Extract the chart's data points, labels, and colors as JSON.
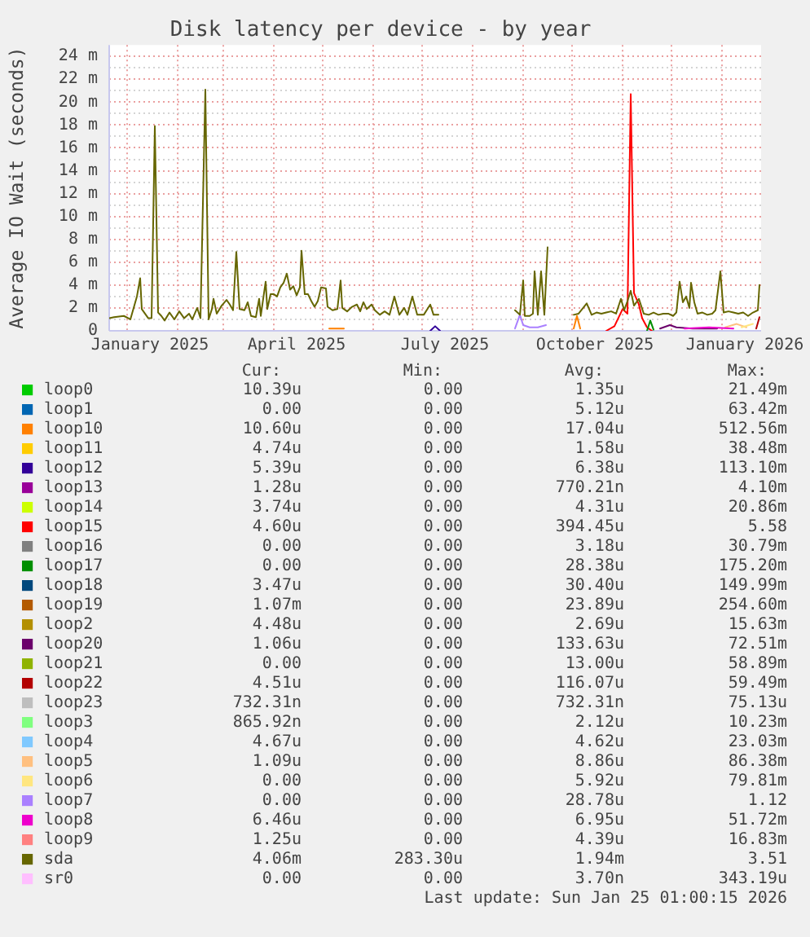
{
  "chart_data": {
    "type": "line",
    "title": "Disk latency per device - by year",
    "ylabel": "Average IO Wait (seconds)",
    "xlim": [
      "2024-12-21",
      "2026-01-25"
    ],
    "xticks": [
      {
        "value": "2025-01-01",
        "label": null
      },
      {
        "value": "2025-01-15",
        "label": "January 2025"
      },
      {
        "value": "2025-02-01",
        "label": null
      },
      {
        "value": "2025-03-01",
        "label": null
      },
      {
        "value": "2025-04-01",
        "label": null
      },
      {
        "value": "2025-04-15",
        "label": "April 2025"
      },
      {
        "value": "2025-05-01",
        "label": null
      },
      {
        "value": "2025-06-01",
        "label": null
      },
      {
        "value": "2025-07-01",
        "label": null
      },
      {
        "value": "2025-07-15",
        "label": "July 2025"
      },
      {
        "value": "2025-08-01",
        "label": null
      },
      {
        "value": "2025-09-01",
        "label": null
      },
      {
        "value": "2025-10-01",
        "label": null
      },
      {
        "value": "2025-10-15",
        "label": "October 2025"
      },
      {
        "value": "2025-11-01",
        "label": null
      },
      {
        "value": "2025-12-01",
        "label": null
      },
      {
        "value": "2026-01-01",
        "label": null
      },
      {
        "value": "2026-01-15",
        "label": "January 2026"
      }
    ],
    "ylim": [
      0,
      25
    ],
    "yticks": [
      0,
      {
        "value": 1,
        "label": null
      },
      {
        "value": 2,
        "label": "2 m"
      },
      {
        "value": 3,
        "label": null
      },
      {
        "value": 4,
        "label": "4 m"
      },
      {
        "value": 5,
        "label": null
      },
      {
        "value": 6,
        "label": "6 m"
      },
      {
        "value": 7,
        "label": null
      },
      {
        "value": 8,
        "label": "8 m"
      },
      {
        "value": 9,
        "label": null
      },
      {
        "value": 10,
        "label": "10 m"
      },
      {
        "value": 11,
        "label": null
      },
      {
        "value": 12,
        "label": "12 m"
      },
      {
        "value": 13,
        "label": null
      },
      {
        "value": 14,
        "label": "14 m"
      },
      {
        "value": 15,
        "label": null
      },
      {
        "value": 16,
        "label": "16 m"
      },
      {
        "value": 17,
        "label": null
      },
      {
        "value": 18,
        "label": "18 m"
      },
      {
        "value": 19,
        "label": null
      },
      {
        "value": 20,
        "label": "20 m"
      },
      {
        "value": 21,
        "label": null
      },
      {
        "value": 22,
        "label": "22 m"
      },
      {
        "value": 23,
        "label": null
      },
      {
        "value": 24,
        "label": "24 m"
      }
    ],
    "grid": true,
    "legend": "bottom",
    "series": [
      {
        "name": "loop0",
        "color": "#00cc00"
      },
      {
        "name": "loop1",
        "color": "#0066b3"
      },
      {
        "name": "loop10",
        "color": "#ff8000",
        "x": [
          "2025-05-05",
          "2025-05-14",
          "2025-07-01",
          "2025-10-02",
          "2025-10-04",
          "2025-10-06"
        ],
        "values": [
          0.2,
          0.2,
          null,
          0.2,
          1.3,
          0.2
        ]
      },
      {
        "name": "loop11",
        "color": "#ffcc00"
      },
      {
        "name": "loop12",
        "color": "#330099",
        "x": [
          "2025-07-06",
          "2025-07-09",
          "2025-07-12"
        ],
        "values": [
          0,
          0.4,
          0
        ]
      },
      {
        "name": "loop13",
        "color": "#990099"
      },
      {
        "name": "loop14",
        "color": "#ccff00"
      },
      {
        "name": "loop15",
        "color": "#ff0000",
        "x": [
          "2025-10-22",
          "2025-10-27",
          "2025-11-01",
          "2025-11-04",
          "2025-11-06",
          "2025-11-08",
          "2025-11-11",
          "2025-11-13",
          "2025-11-16",
          "2025-11-19"
        ],
        "values": [
          0,
          0.4,
          1.9,
          1.5,
          20.7,
          3.3,
          2.3,
          1.1,
          0.3,
          0
        ]
      },
      {
        "name": "loop16",
        "color": "#808080"
      },
      {
        "name": "loop17",
        "color": "#008f00",
        "x": [
          "2025-11-16",
          "2025-11-18",
          "2025-11-20"
        ],
        "values": [
          0,
          0.9,
          0.1
        ]
      },
      {
        "name": "loop18",
        "color": "#00487d"
      },
      {
        "name": "loop19",
        "color": "#b35a00"
      },
      {
        "name": "loop2",
        "color": "#b38f00"
      },
      {
        "name": "loop20",
        "color": "#6b006b",
        "x": [
          "2025-11-24",
          "2025-11-30",
          "2025-12-04",
          "2025-12-14",
          "2025-12-29"
        ],
        "values": [
          0.2,
          0.5,
          0.3,
          0.2,
          0.2
        ]
      },
      {
        "name": "loop21",
        "color": "#8fb300"
      },
      {
        "name": "loop22",
        "color": "#b30000",
        "x": [
          "2026-01-22",
          "2026-01-24"
        ],
        "values": [
          0.2,
          1.2
        ]
      },
      {
        "name": "loop23",
        "color": "#bebebe"
      },
      {
        "name": "loop3",
        "color": "#80ff80"
      },
      {
        "name": "loop4",
        "color": "#80c9ff"
      },
      {
        "name": "loop5",
        "color": "#ffc080",
        "x": [
          "2026-01-03",
          "2026-01-10",
          "2026-01-16"
        ],
        "values": [
          0.3,
          0.6,
          0.3
        ]
      },
      {
        "name": "loop6",
        "color": "#ffe680",
        "x": [
          "2026-01-13",
          "2026-01-20"
        ],
        "values": [
          0.3,
          0.6
        ]
      },
      {
        "name": "loop7",
        "color": "#aa80ff",
        "x": [
          "2025-08-27",
          "2025-08-30",
          "2025-09-01",
          "2025-09-05",
          "2025-09-10",
          "2025-09-15"
        ],
        "values": [
          0.2,
          1.4,
          0.5,
          0.3,
          0.3,
          0.5
        ]
      },
      {
        "name": "loop8",
        "color": "#ee00cc",
        "x": [
          "2025-12-09",
          "2025-12-24",
          "2026-01-08"
        ],
        "values": [
          0.2,
          0.3,
          0.2
        ]
      },
      {
        "name": "loop9",
        "color": "#ff8080"
      },
      {
        "name": "sda",
        "color": "#666600",
        "x": [
          "2024-12-21",
          "2024-12-24",
          "2024-12-30",
          "2025-01-03",
          "2025-01-07",
          "2025-01-09",
          "2025-01-10",
          "2025-01-14",
          "2025-01-16",
          "2025-01-18",
          "2025-01-20",
          "2025-01-22",
          "2025-01-24",
          "2025-01-27",
          "2025-01-30",
          "2025-02-02",
          "2025-02-05",
          "2025-02-08",
          "2025-02-10",
          "2025-02-13",
          "2025-02-15",
          "2025-02-18",
          "2025-02-20",
          "2025-02-22",
          "2025-02-23",
          "2025-02-25",
          "2025-02-28",
          "2025-03-03",
          "2025-03-05",
          "2025-03-07",
          "2025-03-09",
          "2025-03-11",
          "2025-03-14",
          "2025-03-16",
          "2025-03-18",
          "2025-03-21",
          "2025-03-23",
          "2025-03-24",
          "2025-03-26",
          "2025-03-27",
          "2025-03-28",
          "2025-03-30",
          "2025-04-01",
          "2025-04-03",
          "2025-04-05",
          "2025-04-07",
          "2025-04-09",
          "2025-04-11",
          "2025-04-13",
          "2025-04-15",
          "2025-04-17",
          "2025-04-18",
          "2025-04-20",
          "2025-04-22",
          "2025-04-24",
          "2025-04-26",
          "2025-04-28",
          "2025-04-30",
          "2025-05-03",
          "2025-05-04",
          "2025-05-07",
          "2025-05-10",
          "2025-05-12",
          "2025-05-13",
          "2025-05-16",
          "2025-05-19",
          "2025-05-22",
          "2025-05-24",
          "2025-05-26",
          "2025-05-28",
          "2025-05-31",
          "2025-06-02",
          "2025-06-05",
          "2025-06-08",
          "2025-06-11",
          "2025-06-14",
          "2025-06-17",
          "2025-06-20",
          "2025-06-22",
          "2025-06-25",
          "2025-06-28",
          "2025-07-02",
          "2025-07-06",
          "2025-07-08",
          "2025-07-11",
          "2025-08-01",
          "2025-08-27",
          "2025-08-30",
          "2025-09-01",
          "2025-09-02",
          "2025-09-05",
          "2025-09-07",
          "2025-09-08",
          "2025-09-10",
          "2025-09-12",
          "2025-09-14",
          "2025-09-16",
          "2025-09-24",
          "2025-10-02",
          "2025-10-05",
          "2025-10-10",
          "2025-10-13",
          "2025-10-16",
          "2025-10-19",
          "2025-10-22",
          "2025-10-25",
          "2025-10-28",
          "2025-10-31",
          "2025-11-02",
          "2025-11-04",
          "2025-11-06",
          "2025-11-08",
          "2025-11-11",
          "2025-11-14",
          "2025-11-17",
          "2025-11-20",
          "2025-11-23",
          "2025-11-26",
          "2025-11-29",
          "2025-12-02",
          "2025-12-04",
          "2025-12-06",
          "2025-12-08",
          "2025-12-10",
          "2025-12-12",
          "2025-12-13",
          "2025-12-15",
          "2025-12-17",
          "2025-12-20",
          "2025-12-23",
          "2025-12-26",
          "2025-12-28",
          "2025-12-31",
          "2026-01-02",
          "2026-01-05",
          "2026-01-08",
          "2026-01-11",
          "2026-01-14",
          "2026-01-17",
          "2026-01-20",
          "2026-01-23",
          "2026-01-24"
        ],
        "values": [
          1.1,
          1.2,
          1.3,
          1.0,
          3.0,
          4.6,
          1.9,
          1.1,
          1.1,
          17.9,
          1.6,
          1.3,
          0.9,
          1.6,
          1.0,
          1.7,
          1.1,
          1.5,
          1.0,
          2.0,
          1.1,
          21.1,
          1.0,
          1.9,
          2.8,
          1.5,
          2.2,
          2.7,
          2.3,
          1.8,
          6.9,
          1.9,
          1.8,
          2.5,
          1.3,
          1.2,
          2.8,
          1.3,
          3.3,
          4.3,
          1.9,
          3.2,
          3.2,
          3.0,
          3.8,
          4.2,
          5.0,
          3.6,
          3.9,
          3.1,
          3.8,
          7.0,
          3.2,
          3.2,
          2.6,
          2.1,
          2.6,
          3.8,
          3.7,
          2.1,
          1.8,
          1.9,
          4.4,
          2.0,
          1.7,
          2.1,
          2.3,
          1.7,
          2.5,
          1.9,
          2.3,
          1.8,
          1.4,
          1.7,
          1.4,
          3.0,
          1.4,
          2.0,
          1.4,
          3.0,
          1.4,
          1.4,
          2.3,
          1.4,
          1.4,
          null,
          1.8,
          1.4,
          4.4,
          1.3,
          1.3,
          1.5,
          5.2,
          1.4,
          5.2,
          1.4,
          7.3,
          null,
          1.4,
          1.5,
          2.4,
          1.4,
          1.6,
          1.5,
          1.6,
          1.7,
          1.5,
          2.8,
          1.8,
          2.6,
          3.5,
          2.2,
          2.8,
          1.5,
          1.4,
          1.6,
          1.4,
          1.5,
          1.5,
          1.3,
          1.6,
          4.3,
          2.5,
          3.0,
          2.0,
          4.2,
          2.5,
          1.5,
          1.6,
          1.4,
          1.5,
          1.8,
          5.2,
          1.6,
          1.7,
          1.6,
          1.5,
          1.6,
          1.3,
          1.6,
          1.8,
          4.0
        ]
      },
      {
        "name": "sr0",
        "color": "#ffbfff"
      }
    ],
    "annotations": [
      "Cur:",
      "Min:",
      "Avg:",
      "Max:",
      "10.39u",
      "0.00",
      "1.35u",
      "21.49m",
      "0.00",
      "0.00",
      "5.12u",
      "63.42m",
      "10.60u",
      "0.00",
      "17.04u",
      "512.56m",
      "4.74u",
      "0.00",
      "1.58u",
      "38.48m",
      "5.39u",
      "0.00",
      "6.38u",
      "113.10m",
      "1.28u",
      "0.00",
      "770.21n",
      "4.10m",
      "3.74u",
      "0.00",
      "4.31u",
      "20.86m",
      "4.60u",
      "0.00",
      "394.45u",
      "5.58",
      "0.00",
      "0.00",
      "3.18u",
      "30.79m",
      "0.00",
      "0.00",
      "28.38u",
      "175.20m",
      "3.47u",
      "0.00",
      "30.40u",
      "149.99m",
      "1.07m",
      "0.00",
      "23.89u",
      "254.60m",
      "4.48u",
      "0.00",
      "2.69u",
      "15.63m",
      "1.06u",
      "0.00",
      "133.63u",
      "72.51m",
      "0.00",
      "0.00",
      "13.00u",
      "58.89m",
      "4.51u",
      "0.00",
      "116.07u",
      "59.49m",
      "732.31n",
      "0.00",
      "732.31n",
      "75.13u",
      "865.92n",
      "0.00",
      "2.12u",
      "10.23m",
      "4.67u",
      "0.00",
      "4.62u",
      "23.03m",
      "1.09u",
      "0.00",
      "8.86u",
      "86.38m",
      "0.00",
      "0.00",
      "5.92u",
      "79.81m",
      "0.00",
      "0.00",
      "28.78u",
      "1.12",
      "6.46u",
      "0.00",
      "6.95u",
      "51.72m",
      "1.25u",
      "0.00",
      "4.39u",
      "16.83m",
      "4.06m",
      "283.30u",
      "1.94m",
      "3.51",
      "0.00",
      "0.00",
      "3.70n",
      "343.19u",
      "Last update: Sun Jan 25 01:00:15 2026"
    ]
  }
}
